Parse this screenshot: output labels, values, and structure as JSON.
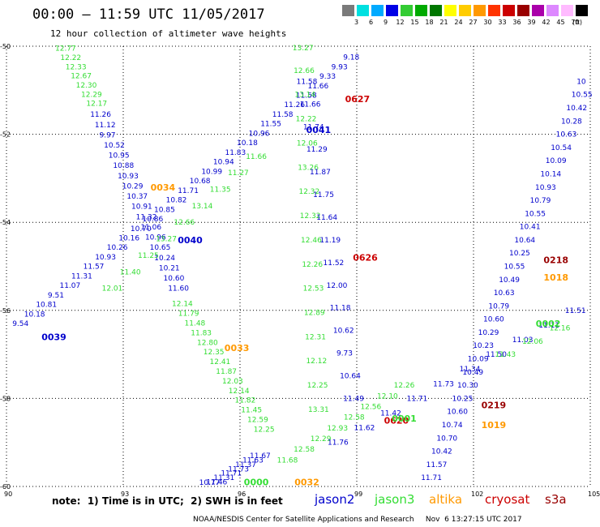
{
  "header": {
    "title": "00:00 – 11:59 UTC 11/05/2017",
    "subtitle": "12 hour collection of altimeter wave heights"
  },
  "colorbar": {
    "unit": "(ft)",
    "labels": [
      "3",
      "6",
      "9",
      "12",
      "15",
      "18",
      "21",
      "24",
      "27",
      "30",
      "33",
      "36",
      "39",
      "42",
      "45",
      "70"
    ],
    "colors": [
      "#7a7a7a",
      "#00e0e0",
      "#00aaff",
      "#0000e6",
      "#33cc33",
      "#00aa00",
      "#007700",
      "#ffff00",
      "#ffcc00",
      "#ff9900",
      "#ff3300",
      "#cc0000",
      "#990000",
      "#aa00aa",
      "#dd88ff",
      "#ffbbff",
      "#000000"
    ]
  },
  "map": {
    "lon_ticks": [
      "90",
      "93",
      "96",
      "99",
      "102",
      "105"
    ],
    "lat_ticks": [
      "-50",
      "-52",
      "-54",
      "-56",
      "-58",
      "-60"
    ],
    "lon_range": [
      90,
      105
    ],
    "lat_range": [
      -60,
      -50
    ]
  },
  "satellite_colors": {
    "jason2": "#0000cc",
    "jason3": "#33dd33",
    "altika": "#ff9900",
    "cryosat": "#cc0000",
    "s3a": "#990000"
  },
  "tracks": [
    {
      "sat": "jason3",
      "tag": "",
      "values": [
        "12.77",
        "12.22",
        "12.33",
        "12.67",
        "12.30",
        "12.29",
        "12.17"
      ],
      "start": [
        91.5,
        -50.05
      ],
      "end": [
        92.3,
        -51.3
      ]
    },
    {
      "sat": "jason2",
      "tag": "",
      "values": [
        "11.26",
        "11.12",
        "9.97",
        "10.52",
        "10.95",
        "10.88",
        "10.93",
        "10.29",
        "10.37",
        "10.91",
        "11.32",
        "11.06",
        "10.96",
        "10.65",
        "10.24",
        "10.21",
        "10.60",
        "11.60"
      ],
      "start": [
        92.4,
        -51.55
      ],
      "end": [
        94.4,
        -55.5
      ]
    },
    {
      "sat": "jason3",
      "tag": "",
      "values": [
        "12.14",
        "11.79",
        "11.48",
        "11.83",
        "12.80",
        "12.35",
        "12.41",
        "11.87",
        "12.03",
        "12.14",
        "11.82",
        "11.45",
        "12.59",
        "12.25"
      ],
      "start": [
        94.5,
        -55.85
      ],
      "end": [
        96.6,
        -58.7
      ]
    },
    {
      "sat": "jason2",
      "tag": "",
      "values": [
        "9.54",
        "10.18",
        "10.81",
        "9.51",
        "11.07",
        "11.31",
        "11.57",
        "10.93",
        "10.26",
        "10.16",
        "10.70",
        "10.86",
        "10.85",
        "10.82",
        "11.71",
        "10.68",
        "10.99",
        "10.94",
        "11.83",
        "10.18",
        "10.96",
        "11.55",
        "11.58",
        "11.26",
        "11.58",
        "11.66",
        "9.33",
        "9.93",
        "9.18"
      ],
      "start": [
        90.4,
        -56.3
      ],
      "end": [
        98.9,
        -50.25
      ]
    },
    {
      "sat": "jason3",
      "tag": "",
      "values": [
        "12.01",
        "11.40",
        "11.25",
        "13.27",
        "12.66",
        "13.14",
        "11.35",
        "11.27",
        "11.66"
      ],
      "start": [
        92.7,
        -55.5
      ],
      "end": [
        96.4,
        -52.5
      ]
    },
    {
      "sat": "jason3",
      "tag": "",
      "values": [
        "13.27",
        "12.66",
        "13.14",
        "12.22",
        "12.06",
        "13.26",
        "12.32",
        "12.32",
        "12.46",
        "12.26",
        "12.53",
        "12.89",
        "12.31",
        "12.12",
        "12.25",
        "13.31"
      ],
      "start": [
        97.6,
        -50.0
      ],
      "end": [
        98.0,
        -58.25
      ]
    },
    {
      "sat": "jason2",
      "tag": "",
      "values": [
        "11.58",
        "11.66",
        "11.74",
        "11.29",
        "11.87",
        "11.75",
        "11.64",
        "11.19",
        "11.52",
        "12.00",
        "11.18",
        "10.62",
        "9.73",
        "10.64",
        "11.49"
      ],
      "start": [
        97.7,
        -50.8
      ],
      "end": [
        98.9,
        -58.0
      ]
    },
    {
      "sat": "jason2",
      "tag": "",
      "values": [
        "11.67",
        "11.63",
        "11.37",
        "11.73",
        "11.71",
        "11.31",
        "11.46",
        "10.77"
      ],
      "start": [
        96.5,
        -59.3
      ],
      "end": [
        95.2,
        -60.0
      ]
    },
    {
      "sat": "jason3",
      "tag": "",
      "values": [
        "11.68",
        "12.58",
        "12.29",
        "12.93",
        "12.58",
        "12.56",
        "12.10",
        "12.26"
      ],
      "start": [
        97.2,
        -59.4
      ],
      "end": [
        100.2,
        -57.7
      ]
    },
    {
      "sat": "jason2",
      "tag": "",
      "values": [
        "11.76",
        "11.62",
        "11.42",
        "11.71",
        "11.73",
        "11.34",
        "11.50",
        "11.03",
        "11.11",
        "11.51"
      ],
      "start": [
        98.5,
        -59.0
      ],
      "end": [
        104.6,
        -56.0
      ]
    },
    {
      "sat": "jason2",
      "tag": "",
      "values": [
        "11.71",
        "11.57",
        "10.42",
        "10.70",
        "10.74",
        "10.60",
        "10.25",
        "10.30",
        "10.49",
        "10.09",
        "10.23",
        "10.29",
        "10.60",
        "10.79",
        "10.63",
        "10.49",
        "10.55",
        "10.25",
        "10.64",
        "10.41",
        "10.55",
        "10.79",
        "10.93",
        "10.14",
        "10.09",
        "10.54",
        "10.63",
        "10.28",
        "10.42",
        "10.55",
        "10"
      ],
      "start": [
        100.9,
        -59.8
      ],
      "end": [
        104.9,
        -50.8
      ]
    },
    {
      "sat": "jason3",
      "tag": "",
      "values": [
        "12.16",
        "12.06",
        "11.43"
      ],
      "start": [
        104.2,
        -56.4
      ],
      "end": [
        102.8,
        -57.0
      ]
    }
  ],
  "pass_tags": [
    {
      "text": "0039",
      "sat": "jason2",
      "lon": 90.9,
      "lat": -56.6
    },
    {
      "text": "0040",
      "sat": "jason2",
      "lon": 94.4,
      "lat": -54.4
    },
    {
      "text": "0041",
      "sat": "jason2",
      "lon": 97.7,
      "lat": -51.9
    },
    {
      "text": "0034",
      "sat": "altika",
      "lon": 93.7,
      "lat": -53.2
    },
    {
      "text": "0033",
      "sat": "altika",
      "lon": 95.6,
      "lat": -56.85
    },
    {
      "text": "0032",
      "sat": "altika",
      "lon": 97.4,
      "lat": -59.9
    },
    {
      "text": "0000",
      "sat": "jason3",
      "lon": 96.1,
      "lat": -59.9
    },
    {
      "text": "0627",
      "sat": "cryosat",
      "lon": 98.7,
      "lat": -51.2
    },
    {
      "text": "0626",
      "sat": "cryosat",
      "lon": 98.9,
      "lat": -54.8
    },
    {
      "text": "0620",
      "sat": "cryosat",
      "lon": 99.7,
      "lat": -58.5
    },
    {
      "text": "0001",
      "sat": "jason3",
      "lon": 99.9,
      "lat": -58.45
    },
    {
      "text": "0219",
      "sat": "s3a",
      "lon": 102.2,
      "lat": -58.15
    },
    {
      "text": "1019",
      "sat": "altika",
      "lon": 102.2,
      "lat": -58.6
    },
    {
      "text": "0218",
      "sat": "s3a",
      "lon": 103.8,
      "lat": -54.85
    },
    {
      "text": "1018",
      "sat": "altika",
      "lon": 103.8,
      "lat": -55.25
    },
    {
      "text": "0002",
      "sat": "jason3",
      "lon": 103.6,
      "lat": -56.3
    }
  ],
  "note": "note:  1) Time is in UTC;  2) SWH is in feet",
  "legend": [
    {
      "label": "jason2",
      "sat": "jason2"
    },
    {
      "label": "jason3",
      "sat": "jason3"
    },
    {
      "label": "altika",
      "sat": "altika"
    },
    {
      "label": "cryosat",
      "sat": "cryosat"
    },
    {
      "label": "s3a",
      "sat": "s3a"
    }
  ],
  "footer": "NOAA/NESDIS Center for Satellite Applications and Research     Nov  6 13:27:15 UTC 2017"
}
